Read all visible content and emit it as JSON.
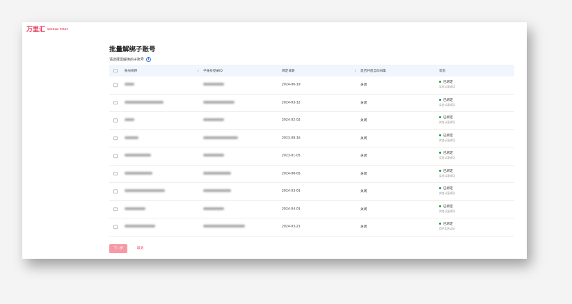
{
  "logo": {
    "cn": "万里汇",
    "en": "WORLD FIRST"
  },
  "page_title": "批量解绑子账号",
  "subtitle": "请选择需解绑的子账号",
  "columns": [
    "账号昵称",
    "子账号登录ID",
    "绑定日期",
    "是否开启自动归集",
    "状态"
  ],
  "rows": [
    {
      "date": "2024-06-19",
      "auto": "关闭",
      "status": "已绑定",
      "status_sub": "实名认证成功"
    },
    {
      "date": "2024-03-12",
      "auto": "关闭",
      "status": "已绑定",
      "status_sub": "实名认证成功"
    },
    {
      "date": "2024-02-02",
      "auto": "关闭",
      "status": "已绑定",
      "status_sub": "实名认证成功"
    },
    {
      "date": "2023-08-16",
      "auto": "关闭",
      "status": "已绑定",
      "status_sub": "实名认证成功"
    },
    {
      "date": "2023-01-05",
      "auto": "关闭",
      "status": "已绑定",
      "status_sub": "实名认证成功"
    },
    {
      "date": "2024-08-05",
      "auto": "关闭",
      "status": "已绑定",
      "status_sub": "实名认证成功"
    },
    {
      "date": "2024-03-01",
      "auto": "关闭",
      "status": "已绑定",
      "status_sub": "实名认证成功"
    },
    {
      "date": "2024-04-01",
      "auto": "关闭",
      "status": "已绑定",
      "status_sub": "实名认证成功"
    },
    {
      "date": "2024-03-21",
      "auto": "关闭",
      "status": "已绑定",
      "status_sub": "用户实名认证"
    }
  ],
  "buttons": {
    "next": "下一步",
    "cancel": "取消"
  },
  "colors": {
    "brand": "#e8385a",
    "bound": "#1a9c3a",
    "header_bg": "#f1f5fd"
  }
}
